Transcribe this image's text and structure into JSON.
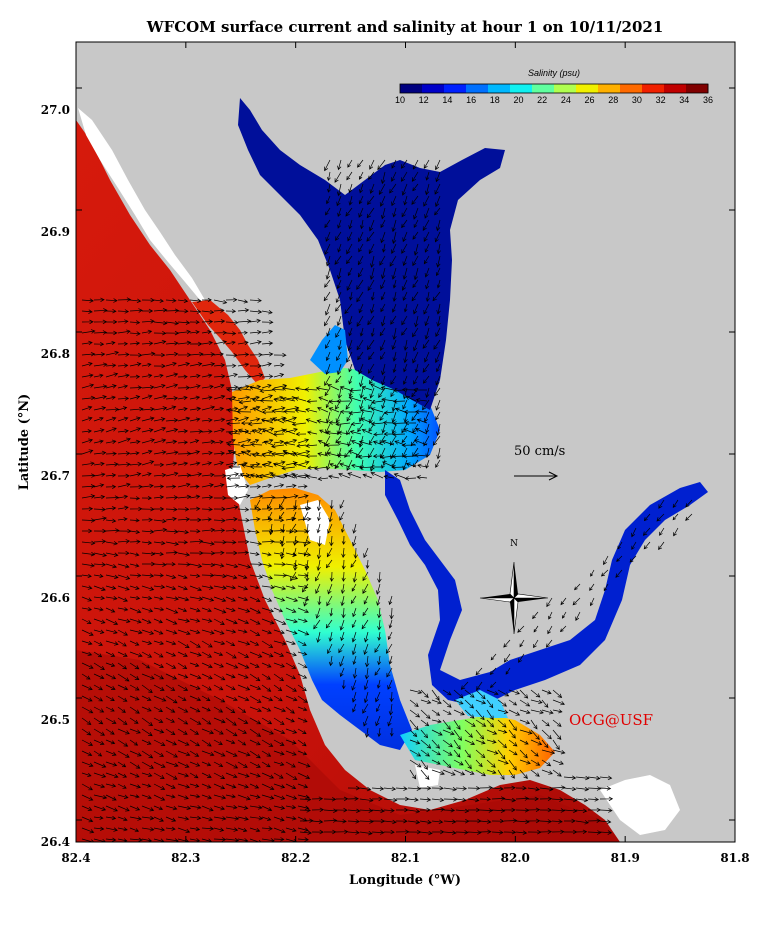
{
  "title": "WFCOM surface current and salinity at hour 1 on 10/11/2021",
  "x_axis_label": "Longitude (°W)",
  "y_axis_label": "Latitude (°N)",
  "x_ticks": [
    "82.4",
    "82.3",
    "82.2",
    "82.1",
    "82.0",
    "81.9",
    "81.8"
  ],
  "y_ticks": [
    "26.4",
    "26.5",
    "26.6",
    "26.7",
    "26.8",
    "26.9",
    "27.0"
  ],
  "colorbar": {
    "title": "Salinity (psu)",
    "ticks": [
      "10",
      "12",
      "14",
      "16",
      "18",
      "20",
      "22",
      "24",
      "26",
      "28",
      "30",
      "32",
      "34",
      "36"
    ],
    "colors": [
      "#00007f",
      "#0000c8",
      "#0020ff",
      "#0070ff",
      "#00b8ff",
      "#10f0f0",
      "#60ff9f",
      "#b0ff50",
      "#f0f000",
      "#ffb000",
      "#ff6a00",
      "#f02000",
      "#c00000",
      "#800000"
    ]
  },
  "scale_label": "50 cm/s",
  "north_label": "N",
  "credit": "OCG@USF",
  "colors": {
    "land": "#c8c8c8",
    "ocean_high": "#d8140c",
    "ocean_deep": "#b20c08",
    "estuary_low": "#000f9a",
    "shallow_white": "#ffffff"
  }
}
